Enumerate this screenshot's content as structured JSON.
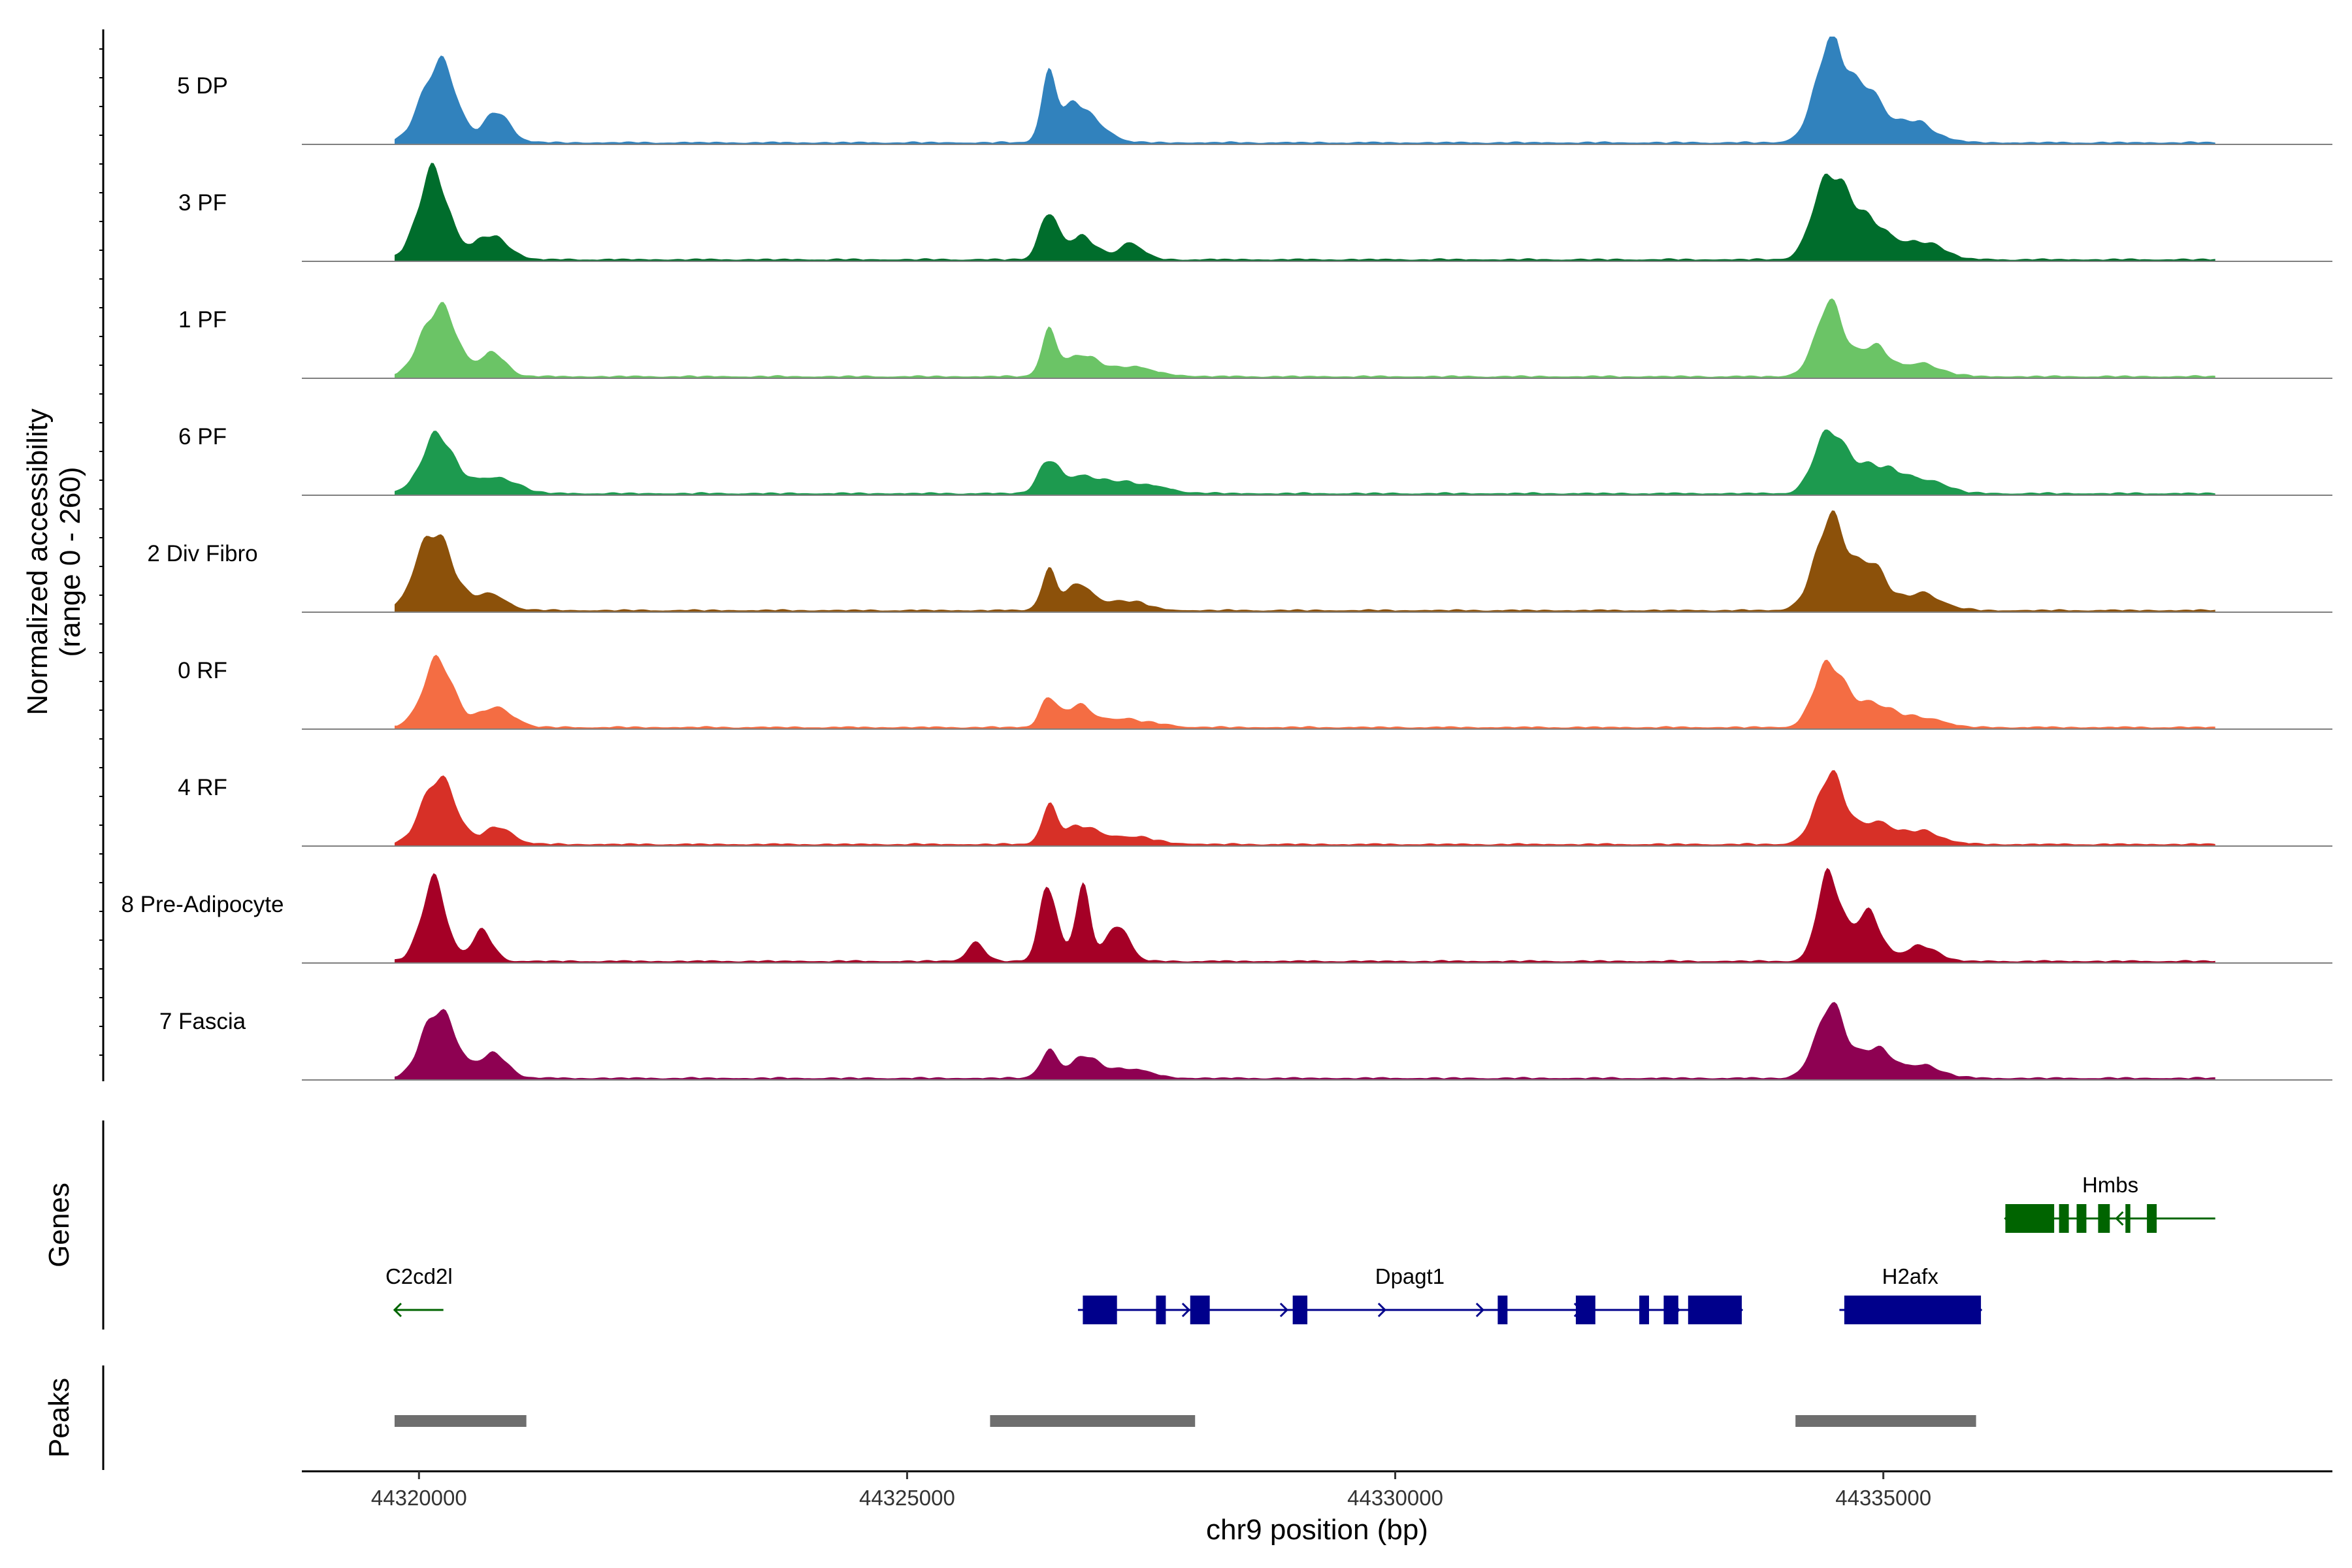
{
  "chart_data": {
    "type": "area",
    "title": "",
    "ylabel": "Normalized accessibility",
    "ylabel_range": "(range 0 - 260)",
    "ylim": [
      0,
      260
    ],
    "xlabel": "chr9 position (bp)",
    "xlim": [
      44318800,
      44339600
    ],
    "x_ticks": [
      44320000,
      44325000,
      44330000,
      44335000
    ],
    "x_tick_labels": [
      "44320000",
      "44325000",
      "44330000",
      "44335000"
    ],
    "tracks": [
      {
        "name": "5 DP",
        "color": "#3182BD",
        "peaks": [
          [
            44320200,
            200,
            170
          ],
          [
            44320800,
            70,
            140
          ],
          [
            44326450,
            150,
            80
          ],
          [
            44326700,
            90,
            120
          ],
          [
            44326950,
            40,
            150
          ],
          [
            44334450,
            220,
            160
          ],
          [
            44334800,
            120,
            180
          ],
          [
            44335300,
            50,
            220
          ]
        ]
      },
      {
        "name": "3 PF",
        "color": "#006D2C",
        "peaks": [
          [
            44320150,
            210,
            160
          ],
          [
            44320750,
            60,
            160
          ],
          [
            44326450,
            120,
            90
          ],
          [
            44326800,
            55,
            150
          ],
          [
            44327300,
            40,
            120
          ],
          [
            44334450,
            210,
            160
          ],
          [
            44334850,
            100,
            180
          ],
          [
            44335400,
            45,
            200
          ]
        ]
      },
      {
        "name": "1 PF",
        "color": "#6BC466",
        "peaks": [
          [
            44320200,
            175,
            170
          ],
          [
            44320750,
            55,
            140
          ],
          [
            44326450,
            100,
            80
          ],
          [
            44326750,
            45,
            150
          ],
          [
            44327200,
            25,
            300
          ],
          [
            44334450,
            170,
            150
          ],
          [
            44334900,
            70,
            160
          ],
          [
            44335400,
            30,
            200
          ]
        ]
      },
      {
        "name": "6 PF",
        "color": "#1D9A4F",
        "peaks": [
          [
            44320200,
            140,
            170
          ],
          [
            44320800,
            40,
            200
          ],
          [
            44326450,
            80,
            100
          ],
          [
            44326800,
            35,
            200
          ],
          [
            44327300,
            25,
            300
          ],
          [
            44334450,
            155,
            150
          ],
          [
            44334900,
            70,
            200
          ],
          [
            44335400,
            35,
            220
          ]
        ]
      },
      {
        "name": "2 Div Fibro",
        "color": "#8C510A",
        "peaks": [
          [
            44320150,
            200,
            170
          ],
          [
            44320700,
            40,
            180
          ],
          [
            44326450,
            90,
            80
          ],
          [
            44326750,
            65,
            120
          ],
          [
            44327200,
            25,
            220
          ],
          [
            44334450,
            210,
            160
          ],
          [
            44334850,
            110,
            170
          ],
          [
            44335400,
            40,
            200
          ]
        ]
      },
      {
        "name": "0 RF",
        "color": "#F46D43",
        "peaks": [
          [
            44320200,
            160,
            160
          ],
          [
            44320800,
            50,
            160
          ],
          [
            44326450,
            75,
            80
          ],
          [
            44326750,
            45,
            140
          ],
          [
            44327200,
            20,
            300
          ],
          [
            44334450,
            160,
            150
          ],
          [
            44334900,
            60,
            180
          ],
          [
            44335400,
            25,
            200
          ]
        ]
      },
      {
        "name": "4 RF",
        "color": "#D73027",
        "peaks": [
          [
            44320200,
            170,
            160
          ],
          [
            44320800,
            40,
            160
          ],
          [
            44326450,
            85,
            80
          ],
          [
            44326750,
            40,
            150
          ],
          [
            44327200,
            20,
            300
          ],
          [
            44334450,
            160,
            150
          ],
          [
            44334900,
            50,
            200
          ],
          [
            44335400,
            30,
            200
          ]
        ]
      },
      {
        "name": "8 Pre-Adipocyte",
        "color": "#A50026",
        "peaks": [
          [
            44320150,
            190,
            130
          ],
          [
            44320650,
            70,
            110
          ],
          [
            44325700,
            45,
            90
          ],
          [
            44326450,
            190,
            90
          ],
          [
            44326800,
            170,
            80
          ],
          [
            44327150,
            85,
            120
          ],
          [
            44334450,
            220,
            120
          ],
          [
            44334850,
            120,
            130
          ],
          [
            44335400,
            40,
            150
          ]
        ]
      },
      {
        "name": "7 Fascia",
        "color": "#8E0152",
        "peaks": [
          [
            44320200,
            175,
            160
          ],
          [
            44320750,
            60,
            150
          ],
          [
            44326450,
            65,
            90
          ],
          [
            44326800,
            50,
            120
          ],
          [
            44327200,
            25,
            250
          ],
          [
            44334450,
            170,
            150
          ],
          [
            44334900,
            70,
            180
          ],
          [
            44335400,
            30,
            200
          ]
        ]
      }
    ],
    "genes_track_label": "Genes",
    "genes": [
      {
        "name": "Hmbs",
        "strand": "-",
        "color": "#006400",
        "start": 44336250,
        "end": 44338400,
        "row": 0,
        "exons": [
          [
            44336250,
            44336750
          ],
          [
            44336800,
            44336900
          ],
          [
            44336980,
            44337080
          ],
          [
            44337200,
            44337320
          ],
          [
            44337480,
            44337530
          ],
          [
            44337700,
            44337800
          ]
        ]
      },
      {
        "name": "C2cd2l",
        "strand": "-",
        "color": "#006400",
        "start": 44319750,
        "end": 44320250,
        "row": 1,
        "exons": []
      },
      {
        "name": "Dpagt1",
        "strand": "+",
        "color": "#00008B",
        "start": 44326750,
        "end": 44333550,
        "row": 1,
        "exons": [
          [
            44326800,
            44327150
          ],
          [
            44327550,
            44327650
          ],
          [
            44327900,
            44328100
          ],
          [
            44328950,
            44329100
          ],
          [
            44331050,
            44331150
          ],
          [
            44331850,
            44332050
          ],
          [
            44332500,
            44332600
          ],
          [
            44332750,
            44332900
          ],
          [
            44333000,
            44333550
          ]
        ]
      },
      {
        "name": "H2afx",
        "strand": "+",
        "color": "#00008B",
        "start": 44334550,
        "end": 44336000,
        "row": 1,
        "exons": [
          [
            44334600,
            44336000
          ]
        ]
      }
    ],
    "peaks_track_label": "Peaks",
    "peak_regions": [
      [
        44319750,
        44321100
      ],
      [
        44325850,
        44327950
      ],
      [
        44334100,
        44335950
      ]
    ]
  }
}
